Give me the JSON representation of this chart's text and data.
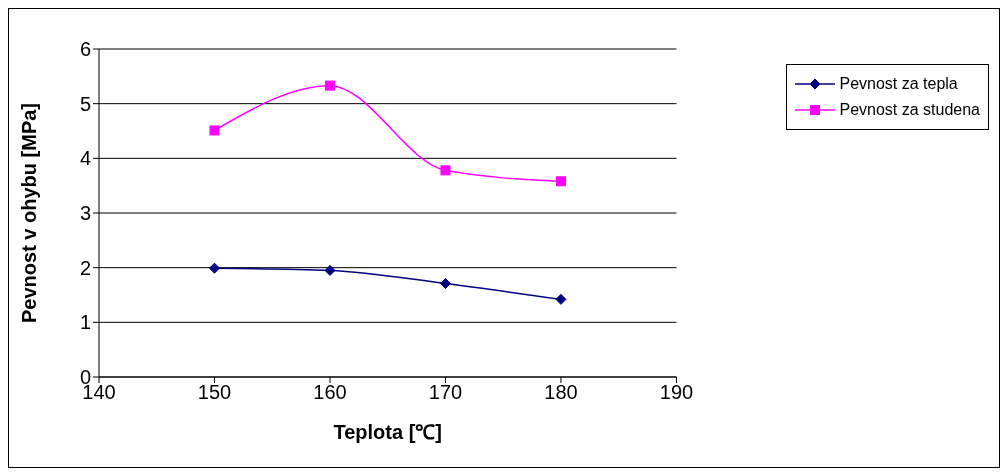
{
  "chart_data": {
    "type": "line",
    "xlabel": "Teplota [℃]",
    "ylabel": "Pevnost v ohybu [MPa]",
    "xlim": [
      140,
      190
    ],
    "xticks": [
      140,
      150,
      160,
      170,
      180,
      190
    ],
    "ylim": [
      0,
      6
    ],
    "yticks": [
      0,
      1,
      2,
      3,
      4,
      5,
      6
    ],
    "grid": "y",
    "legend": "top right",
    "x": [
      150,
      160,
      170,
      180
    ],
    "series": [
      {
        "name": "Pevnost za tepla",
        "color": "#000080",
        "marker": "diamond",
        "values": [
          1.99,
          1.95,
          1.71,
          1.42
        ]
      },
      {
        "name": "Pevnost za studena",
        "color": "#ff00ff",
        "marker": "square",
        "values": [
          4.51,
          5.33,
          3.78,
          3.58
        ]
      }
    ]
  }
}
